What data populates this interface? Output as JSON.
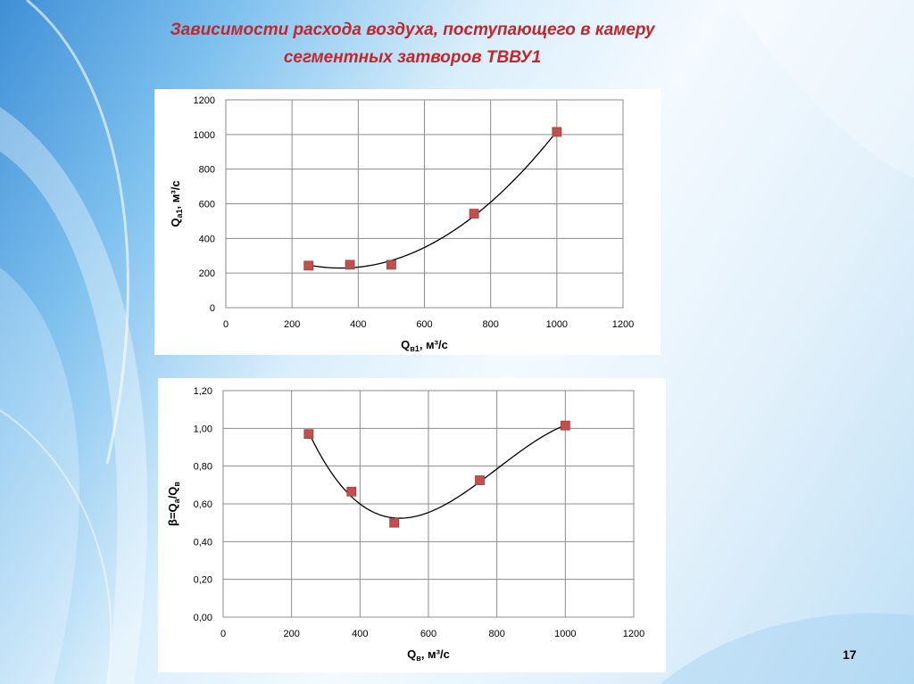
{
  "slide": {
    "title_line1": "Зависимости  расхода воздуха, поступающего в камеру",
    "title_line2": "сегментных затворов ТВВУ1",
    "page_number": "17",
    "accent_color": "#c0282d",
    "marker_color": "#c0504d"
  },
  "chart_data": [
    {
      "type": "scatter",
      "trendline": "polynomial",
      "xlabel": "Q",
      "xlabel_sub": "в1",
      "xlabel_suffix": ", м³/с",
      "ylabel": "Q",
      "ylabel_sub": "а1",
      "ylabel_suffix": ", м³/с",
      "xlim": [
        0,
        1200
      ],
      "ylim": [
        0,
        1200
      ],
      "xticks": [
        0,
        200,
        400,
        600,
        800,
        1000,
        1200
      ],
      "yticks": [
        0,
        200,
        400,
        600,
        800,
        1000,
        1200
      ],
      "xtick_labels": [
        "0",
        "200",
        "400",
        "600",
        "800",
        "1000",
        "1200"
      ],
      "ytick_labels": [
        "0",
        "200",
        "400",
        "600",
        "800",
        "1000",
        "1200"
      ],
      "grid": true,
      "x": [
        250,
        375,
        500,
        750,
        1000
      ],
      "y": [
        243,
        248,
        248,
        543,
        1015
      ]
    },
    {
      "type": "scatter",
      "trendline": "polynomial",
      "xlabel": "Q",
      "xlabel_sub": "в",
      "xlabel_suffix": ", м³/с",
      "ylabel": "β=Q",
      "ylabel_sub": "а",
      "ylabel_suffix": "/Q",
      "ylabel_sub2": "в",
      "xlim": [
        0,
        1200
      ],
      "ylim": [
        0,
        1.2
      ],
      "xticks": [
        0,
        200,
        400,
        600,
        800,
        1000,
        1200
      ],
      "yticks": [
        0,
        0.2,
        0.4,
        0.6,
        0.8,
        1.0,
        1.2
      ],
      "xtick_labels": [
        "0",
        "200",
        "400",
        "600",
        "800",
        "1000",
        "1200"
      ],
      "ytick_labels": [
        "0,00",
        "0,20",
        "0,40",
        "0,60",
        "0,80",
        "1,00",
        "1,20"
      ],
      "grid": true,
      "x": [
        250,
        375,
        500,
        750,
        1000
      ],
      "y": [
        0.97,
        0.665,
        0.5,
        0.725,
        1.015
      ]
    }
  ]
}
